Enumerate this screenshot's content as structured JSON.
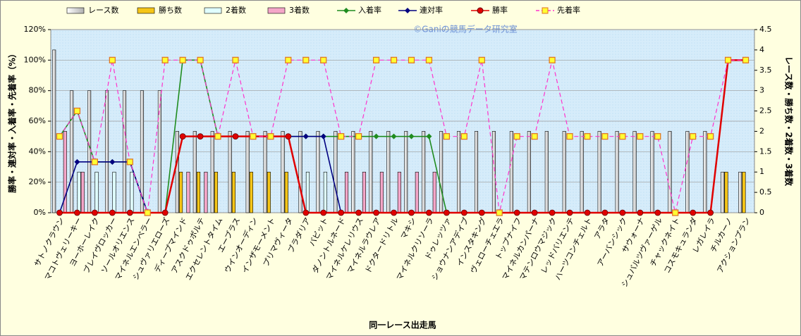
{
  "chart_data": {
    "type": "combo",
    "annotation": "©Ganiの競馬データ研究室",
    "x_label": "同一レース出走馬",
    "y_label": "勝率・連対率・入着率・先着率（%）",
    "y2_label": "レース数・勝ち数・2着数・3着数",
    "categories": [
      "サトノクラウン",
      "マコトヴェリーキー",
      "ヨーホーレイク",
      "ブレイヴロッカー",
      "ソールオリエンス",
      "マイネルエンベラー",
      "シュヴァリエローズ",
      "ディープマインド",
      "アスクドゥポルテ",
      "エクセレントタイム",
      "エーブラス",
      "ウインオーディン",
      "インザモーメント",
      "プリマヴィータ",
      "ブラダリア",
      "バビット",
      "ダノントルネード",
      "マイネルケレリウス",
      "マイネルラウレア",
      "ドクタードリトル",
      "マキシ",
      "マイネルクリソーラ",
      "ドゥレッツァ",
      "ショウナンアデイブ",
      "インスタキング",
      "ヴェローチェエラ",
      "トップナイフ",
      "マイネルカンパーナ",
      "マテンロウマジック",
      "レッドバリエンテ",
      "ハーツコンチェルト",
      "アラタ",
      "アーバンシック",
      "サウォーナ",
      "シュバルツヴァーゲル",
      "チャックネイト",
      "コスモキュランダ",
      "レガレイラ",
      "チルカーノ",
      "アクションプラン"
    ],
    "ylim": [
      0,
      120
    ],
    "yticks": [
      {
        "value": 0,
        "label": "0%"
      },
      {
        "value": 20,
        "label": "20%"
      },
      {
        "value": 40,
        "label": "40%"
      },
      {
        "value": 60,
        "label": "60%"
      },
      {
        "value": 80,
        "label": "80%"
      },
      {
        "value": 100,
        "label": "100%"
      },
      {
        "value": 120,
        "label": "120%"
      }
    ],
    "y2lim": [
      0,
      4.5
    ],
    "y2ticks": [
      0,
      0.5,
      1,
      1.5,
      2,
      2.5,
      3,
      3.5,
      4,
      4.5
    ],
    "grid": true,
    "series": [
      {
        "name": "レース数",
        "kind": "bar",
        "axis": "y2",
        "color": "#ffffff",
        "values": [
          4,
          3,
          3,
          3,
          3,
          3,
          3,
          2,
          2,
          2,
          2,
          2,
          2,
          2,
          2,
          2,
          2,
          2,
          2,
          2,
          2,
          2,
          2,
          2,
          2,
          2,
          2,
          2,
          2,
          2,
          2,
          2,
          2,
          2,
          2,
          2,
          2,
          2,
          1,
          1
        ]
      },
      {
        "name": "勝ち数",
        "kind": "bar",
        "axis": "y2",
        "color": "#f5c518",
        "values": [
          0,
          0,
          0,
          0,
          0,
          0,
          0,
          1,
          1,
          1,
          1,
          1,
          1,
          1,
          0,
          0,
          0,
          0,
          0,
          0,
          0,
          0,
          0,
          0,
          0,
          0,
          0,
          0,
          0,
          0,
          0,
          0,
          0,
          0,
          0,
          0,
          0,
          0,
          1,
          1
        ]
      },
      {
        "name": "2着数",
        "kind": "bar",
        "axis": "y2",
        "color": "#e0ffff",
        "values": [
          0,
          1,
          1,
          1,
          1,
          0,
          0,
          0,
          0,
          0,
          0,
          0,
          0,
          0,
          1,
          1,
          0,
          0,
          0,
          0,
          0,
          0,
          0,
          0,
          0,
          0,
          0,
          0,
          0,
          0,
          0,
          0,
          0,
          0,
          0,
          0,
          0,
          0,
          0,
          0
        ]
      },
      {
        "name": "3着数",
        "kind": "bar",
        "axis": "y2",
        "color": "#f4a6c8",
        "values": [
          2,
          1,
          0,
          0,
          0,
          0,
          0,
          1,
          1,
          0,
          0,
          0,
          0,
          0,
          0,
          0,
          1,
          1,
          1,
          1,
          1,
          1,
          0,
          0,
          0,
          0,
          0,
          0,
          0,
          0,
          0,
          0,
          0,
          0,
          0,
          0,
          0,
          0,
          0,
          0
        ]
      },
      {
        "name": "入着率",
        "kind": "line",
        "marker": "diamond",
        "color": "#1f8c1f",
        "values": [
          50,
          66.7,
          33.3,
          33.3,
          33.3,
          0,
          0,
          100,
          100,
          50,
          50,
          50,
          50,
          50,
          50,
          50,
          50,
          50,
          50,
          50,
          50,
          50,
          0,
          0,
          0,
          0,
          0,
          0,
          0,
          0,
          0,
          0,
          0,
          0,
          0,
          0,
          0,
          0,
          100,
          100
        ]
      },
      {
        "name": "連対率",
        "kind": "line",
        "marker": "diamond",
        "color": "#000080",
        "values": [
          0,
          33.3,
          33.3,
          33.3,
          33.3,
          0,
          0,
          50,
          50,
          50,
          50,
          50,
          50,
          50,
          50,
          50,
          0,
          0,
          0,
          0,
          0,
          0,
          0,
          0,
          0,
          0,
          0,
          0,
          0,
          0,
          0,
          0,
          0,
          0,
          0,
          0,
          0,
          0,
          100,
          100
        ]
      },
      {
        "name": "勝率",
        "kind": "line",
        "marker": "circle",
        "color": "#e00000",
        "values": [
          0,
          0,
          0,
          0,
          0,
          0,
          0,
          50,
          50,
          50,
          50,
          50,
          50,
          50,
          0,
          0,
          0,
          0,
          0,
          0,
          0,
          0,
          0,
          0,
          0,
          0,
          0,
          0,
          0,
          0,
          0,
          0,
          0,
          0,
          0,
          0,
          0,
          0,
          100,
          100
        ]
      },
      {
        "name": "先着率",
        "kind": "line",
        "marker": "square",
        "dashed": true,
        "color": "#ff33cc",
        "values": [
          50,
          66.7,
          33.3,
          100,
          33.3,
          0,
          100,
          100,
          100,
          50,
          100,
          50,
          50,
          100,
          100,
          100,
          50,
          50,
          100,
          100,
          100,
          100,
          50,
          50,
          100,
          0,
          50,
          50,
          100,
          50,
          50,
          50,
          50,
          50,
          50,
          0,
          50,
          50,
          100,
          100
        ]
      }
    ]
  }
}
